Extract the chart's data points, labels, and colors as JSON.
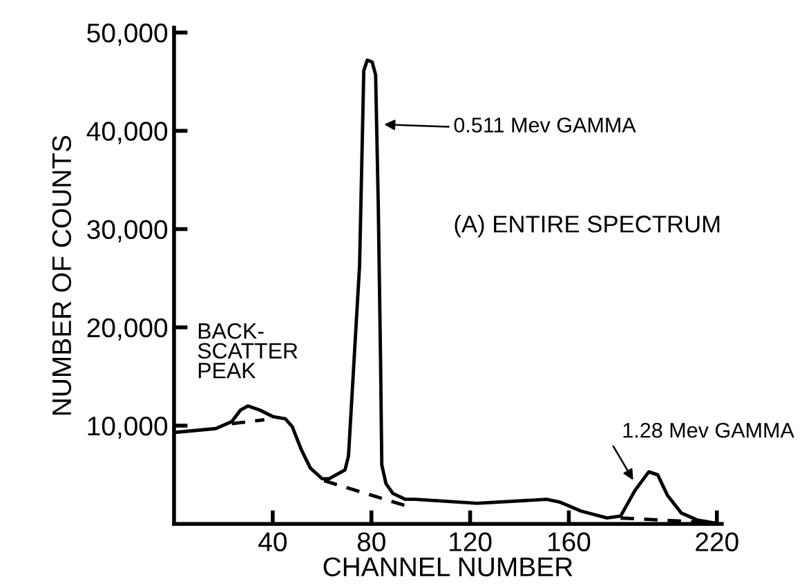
{
  "chart_data": {
    "type": "line",
    "xlabel": "CHANNEL NUMBER",
    "ylabel": "NUMBER OF COUNTS",
    "xlim": [
      0,
      222
    ],
    "ylim": [
      0,
      50500
    ],
    "xticks": [
      40,
      80,
      120,
      160,
      220
    ],
    "yticks": [
      {
        "value": 10000,
        "label": "10,000"
      },
      {
        "value": 20000,
        "label": "20,000"
      },
      {
        "value": 30000,
        "label": "30,000"
      },
      {
        "value": 40000,
        "label": "40,000"
      },
      {
        "value": 50000,
        "label": "50,000"
      }
    ],
    "grid": false,
    "legend": false,
    "marker": "none",
    "series": [
      {
        "color": "#000000",
        "line_style": "solid",
        "x": [
          0,
          16.9,
          23.4,
          27.0,
          29.9,
          34.6,
          40.3,
          45.1,
          47.9,
          51.5,
          55.2,
          60.0,
          62.8,
          69.3,
          70.7,
          75.2,
          76.9,
          78.3,
          80.3,
          81.7,
          82.8,
          83.7,
          84.2,
          85.9,
          88.7,
          93.8,
          97.7,
          122.8,
          151,
          156.6,
          165,
          175.5,
          181,
          186.8,
          192.4,
          196,
          200,
          205.6,
          212,
          218.6
        ],
        "values": [
          9300,
          9700,
          10400,
          11600,
          12000,
          11600,
          10900,
          10700,
          9900,
          7600,
          5700,
          4600,
          4600,
          5500,
          6900,
          26300,
          46100,
          47200,
          47000,
          45700,
          32100,
          16700,
          6000,
          4100,
          3100,
          2500,
          2500,
          2100,
          2500,
          2200,
          1300,
          600,
          800,
          3400,
          5300,
          5000,
          2900,
          1100,
          400,
          100
        ]
      },
      {
        "color": "#000000",
        "line_style": "dashed",
        "x": [
          23.4,
          36.6
        ],
        "values": [
          10200,
          10600
        ]
      },
      {
        "color": "#000000",
        "line_style": "dashed",
        "x": [
          60.8,
          94.6
        ],
        "values": [
          4400,
          1800
        ]
      },
      {
        "color": "#000000",
        "line_style": "dashed",
        "x": [
          181,
          220.6
        ],
        "values": [
          600,
          100
        ]
      }
    ],
    "annotations": [
      "0.511 Mev GAMMA",
      "1.28 Mev GAMMA",
      "BACK-\nSCATTER\nPEAK",
      "(A) ENTIRE SPECTRUM"
    ]
  }
}
